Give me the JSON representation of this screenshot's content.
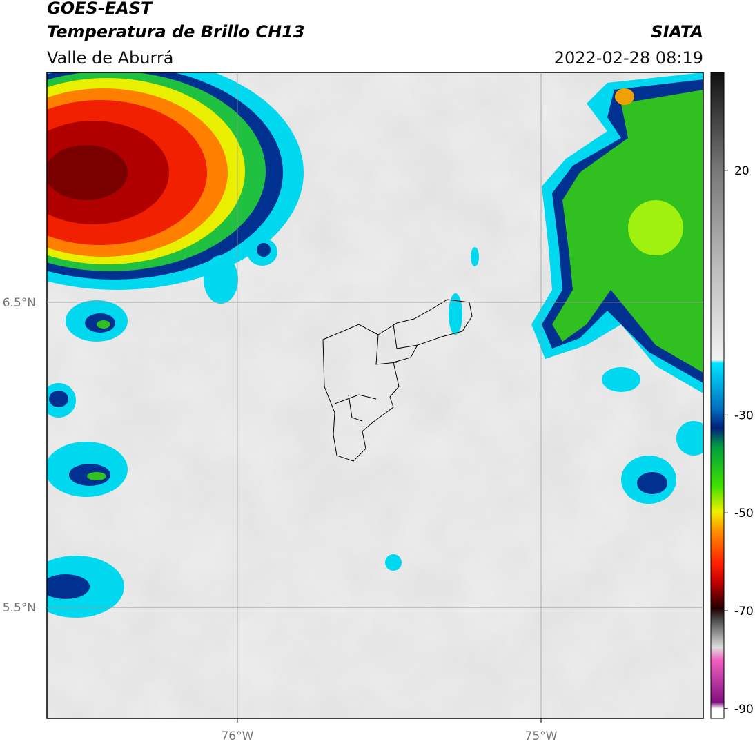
{
  "header": {
    "title": "GOES-EAST",
    "subtitle": "Temperatura de Brillo CH13",
    "region": "Valle de Aburrá",
    "source": "SIATA",
    "datetime": "2022-02-28 08:19"
  },
  "map": {
    "lat_range": [
      5.136,
      7.253
    ],
    "lon_range": [
      -76.627,
      -74.466
    ],
    "lat_ticks": [
      {
        "value": 6.5,
        "label": "6.5°N"
      },
      {
        "value": 5.5,
        "label": "5.5°N"
      }
    ],
    "lon_ticks": [
      {
        "value": -76,
        "label": "76°W"
      },
      {
        "value": -75,
        "label": "75°W"
      }
    ],
    "grid": true
  },
  "colorbar": {
    "range": [
      -92,
      40
    ],
    "ticks": [
      20,
      -30,
      -50,
      -70,
      -90
    ]
  }
}
